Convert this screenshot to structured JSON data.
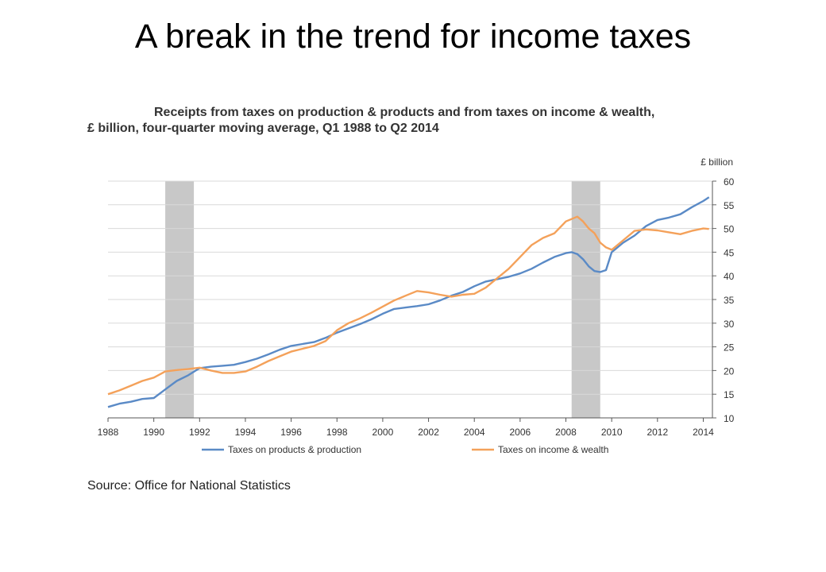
{
  "slide_title": "A break in the trend for income taxes",
  "source": "Source: Office for National Statistics",
  "chart_data": {
    "type": "line",
    "title": "Receipts from taxes on production & products and from taxes on income & wealth,",
    "subtitle": "£ billion, four-quarter moving average, Q1 1988 to Q2 2014",
    "ylabel": "£ billion",
    "xlabel": "",
    "xlim": [
      1988,
      2014.4
    ],
    "ylim": [
      10,
      60
    ],
    "xticks": [
      1988,
      1990,
      1992,
      1994,
      1996,
      1998,
      2000,
      2002,
      2004,
      2006,
      2008,
      2010,
      2012,
      2014
    ],
    "yticks": [
      10,
      15,
      20,
      25,
      30,
      35,
      40,
      45,
      50,
      55,
      60
    ],
    "grid": "horizontal",
    "legend": "bottom",
    "shaded_periods": [
      [
        1990.5,
        1991.75
      ],
      [
        2008.25,
        2009.5
      ]
    ],
    "series": [
      {
        "name": "Taxes on products & production",
        "color": "#5a8ac6",
        "x": [
          1988.0,
          1988.5,
          1989.0,
          1989.5,
          1990.0,
          1990.5,
          1991.0,
          1991.5,
          1992.0,
          1992.5,
          1993.0,
          1993.5,
          1994.0,
          1994.5,
          1995.0,
          1995.5,
          1996.0,
          1996.5,
          1997.0,
          1997.5,
          1998.0,
          1998.5,
          1999.0,
          1999.5,
          2000.0,
          2000.5,
          2001.0,
          2001.5,
          2002.0,
          2002.5,
          2003.0,
          2003.5,
          2004.0,
          2004.5,
          2005.0,
          2005.5,
          2006.0,
          2006.5,
          2007.0,
          2007.5,
          2008.0,
          2008.25,
          2008.5,
          2008.75,
          2009.0,
          2009.25,
          2009.5,
          2009.75,
          2010.0,
          2010.5,
          2011.0,
          2011.5,
          2012.0,
          2012.5,
          2013.0,
          2013.5,
          2014.0,
          2014.25
        ],
        "values": [
          12.3,
          13.0,
          13.4,
          14.0,
          14.2,
          16.0,
          17.8,
          19.0,
          20.5,
          20.8,
          21.0,
          21.2,
          21.8,
          22.5,
          23.4,
          24.4,
          25.2,
          25.6,
          26.0,
          26.9,
          28.0,
          28.9,
          29.8,
          30.8,
          32.0,
          33.0,
          33.3,
          33.6,
          34.0,
          34.8,
          35.8,
          36.6,
          37.8,
          38.8,
          39.3,
          39.8,
          40.5,
          41.5,
          42.8,
          44.0,
          44.8,
          45.0,
          44.6,
          43.5,
          42.0,
          41.0,
          40.8,
          41.2,
          45.0,
          47.0,
          48.5,
          50.5,
          51.8,
          52.3,
          53.0,
          54.5,
          55.8,
          56.6
        ]
      },
      {
        "name": "Taxes on income & wealth",
        "color": "#f4a15a",
        "x": [
          1988.0,
          1988.5,
          1989.0,
          1989.5,
          1990.0,
          1990.5,
          1991.0,
          1991.5,
          1992.0,
          1992.5,
          1993.0,
          1993.5,
          1994.0,
          1994.5,
          1995.0,
          1995.5,
          1996.0,
          1996.5,
          1997.0,
          1997.5,
          1998.0,
          1998.5,
          1999.0,
          1999.5,
          2000.0,
          2000.5,
          2001.0,
          2001.5,
          2002.0,
          2002.5,
          2003.0,
          2003.5,
          2004.0,
          2004.5,
          2005.0,
          2005.5,
          2006.0,
          2006.5,
          2007.0,
          2007.5,
          2008.0,
          2008.25,
          2008.5,
          2008.75,
          2009.0,
          2009.25,
          2009.5,
          2009.75,
          2010.0,
          2010.5,
          2011.0,
          2011.5,
          2012.0,
          2012.5,
          2013.0,
          2013.5,
          2014.0,
          2014.25
        ],
        "values": [
          15.0,
          15.8,
          16.8,
          17.8,
          18.5,
          19.8,
          20.1,
          20.3,
          20.6,
          20.0,
          19.5,
          19.5,
          19.8,
          20.8,
          22.0,
          23.0,
          24.0,
          24.6,
          25.2,
          26.2,
          28.5,
          30.0,
          31.0,
          32.2,
          33.5,
          34.8,
          35.8,
          36.8,
          36.5,
          36.0,
          35.6,
          36.0,
          36.2,
          37.5,
          39.5,
          41.5,
          44.0,
          46.5,
          48.0,
          49.0,
          51.5,
          52.0,
          52.5,
          51.5,
          50.0,
          49.0,
          47.0,
          46.0,
          45.5,
          47.5,
          49.5,
          49.8,
          49.6,
          49.2,
          48.8,
          49.5,
          50.0,
          49.9
        ]
      }
    ]
  }
}
